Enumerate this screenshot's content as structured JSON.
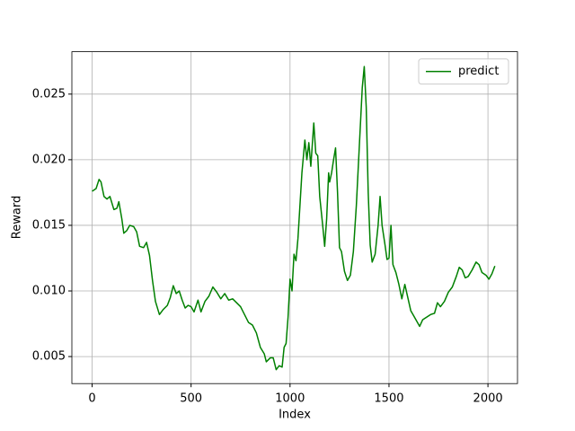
{
  "chart_data": {
    "type": "line",
    "xlabel": "Index",
    "ylabel": "Reward",
    "x": [
      0,
      20,
      35,
      45,
      60,
      75,
      90,
      110,
      125,
      135,
      150,
      160,
      175,
      190,
      210,
      225,
      240,
      260,
      275,
      290,
      305,
      320,
      340,
      360,
      380,
      395,
      410,
      425,
      440,
      455,
      470,
      485,
      500,
      515,
      535,
      550,
      570,
      590,
      610,
      630,
      650,
      670,
      690,
      710,
      730,
      750,
      770,
      790,
      810,
      830,
      850,
      870,
      880,
      900,
      915,
      930,
      945,
      960,
      970,
      980,
      990,
      1000,
      1010,
      1020,
      1030,
      1040,
      1060,
      1075,
      1085,
      1095,
      1105,
      1120,
      1130,
      1140,
      1150,
      1165,
      1175,
      1185,
      1195,
      1200,
      1210,
      1220,
      1230,
      1240,
      1250,
      1260,
      1275,
      1290,
      1305,
      1320,
      1335,
      1350,
      1365,
      1375,
      1385,
      1395,
      1405,
      1415,
      1430,
      1445,
      1455,
      1465,
      1480,
      1490,
      1500,
      1510,
      1520,
      1535,
      1550,
      1565,
      1580,
      1595,
      1610,
      1625,
      1640,
      1655,
      1670,
      1690,
      1710,
      1730,
      1745,
      1760,
      1780,
      1800,
      1820,
      1840,
      1855,
      1870,
      1885,
      1900,
      1920,
      1940,
      1955,
      1970,
      1990,
      2005,
      2020,
      2035
    ],
    "series": [
      {
        "name": "predict",
        "color": "#008000",
        "values": [
          0.0176,
          0.0178,
          0.0185,
          0.0183,
          0.0172,
          0.017,
          0.0172,
          0.0162,
          0.0163,
          0.0168,
          0.0155,
          0.0144,
          0.0146,
          0.015,
          0.0149,
          0.0145,
          0.0134,
          0.0133,
          0.0137,
          0.0127,
          0.0108,
          0.0092,
          0.0082,
          0.0086,
          0.0089,
          0.0095,
          0.0104,
          0.0098,
          0.01,
          0.0093,
          0.0087,
          0.0089,
          0.0088,
          0.0084,
          0.0093,
          0.0084,
          0.0092,
          0.0096,
          0.0103,
          0.0099,
          0.0094,
          0.0098,
          0.0093,
          0.0094,
          0.0091,
          0.0088,
          0.0082,
          0.0076,
          0.0074,
          0.0068,
          0.0057,
          0.0052,
          0.0046,
          0.0049,
          0.0049,
          0.004,
          0.0043,
          0.0042,
          0.0057,
          0.006,
          0.008,
          0.0109,
          0.01,
          0.0128,
          0.0123,
          0.014,
          0.019,
          0.0215,
          0.02,
          0.0213,
          0.0195,
          0.0228,
          0.0205,
          0.0203,
          0.0172,
          0.015,
          0.0134,
          0.0155,
          0.019,
          0.0183,
          0.019,
          0.02,
          0.0209,
          0.0175,
          0.0133,
          0.013,
          0.0115,
          0.0108,
          0.0112,
          0.013,
          0.0165,
          0.021,
          0.0255,
          0.0271,
          0.024,
          0.0175,
          0.0135,
          0.0122,
          0.0128,
          0.015,
          0.0172,
          0.015,
          0.0135,
          0.0124,
          0.0125,
          0.015,
          0.012,
          0.0114,
          0.0105,
          0.0094,
          0.0105,
          0.0095,
          0.0085,
          0.0081,
          0.0077,
          0.0073,
          0.0078,
          0.008,
          0.0082,
          0.0083,
          0.0091,
          0.0088,
          0.0092,
          0.0099,
          0.0103,
          0.0111,
          0.0118,
          0.0116,
          0.011,
          0.0111,
          0.0116,
          0.0122,
          0.012,
          0.0114,
          0.0112,
          0.0109,
          0.0113,
          0.0119
        ]
      }
    ],
    "xlim": [
      -102.35,
      2149.35
    ],
    "xticks": [
      0,
      500,
      1000,
      1500,
      2000
    ],
    "ylim": [
      0.00294,
      0.02823
    ],
    "yticks": [
      0.005,
      {
        "value": 0.01,
        "label": "0.010"
      },
      0.015,
      {
        "value": 0.02,
        "label": "0.020"
      },
      0.025
    ],
    "grid": true,
    "legend": "upper right"
  }
}
